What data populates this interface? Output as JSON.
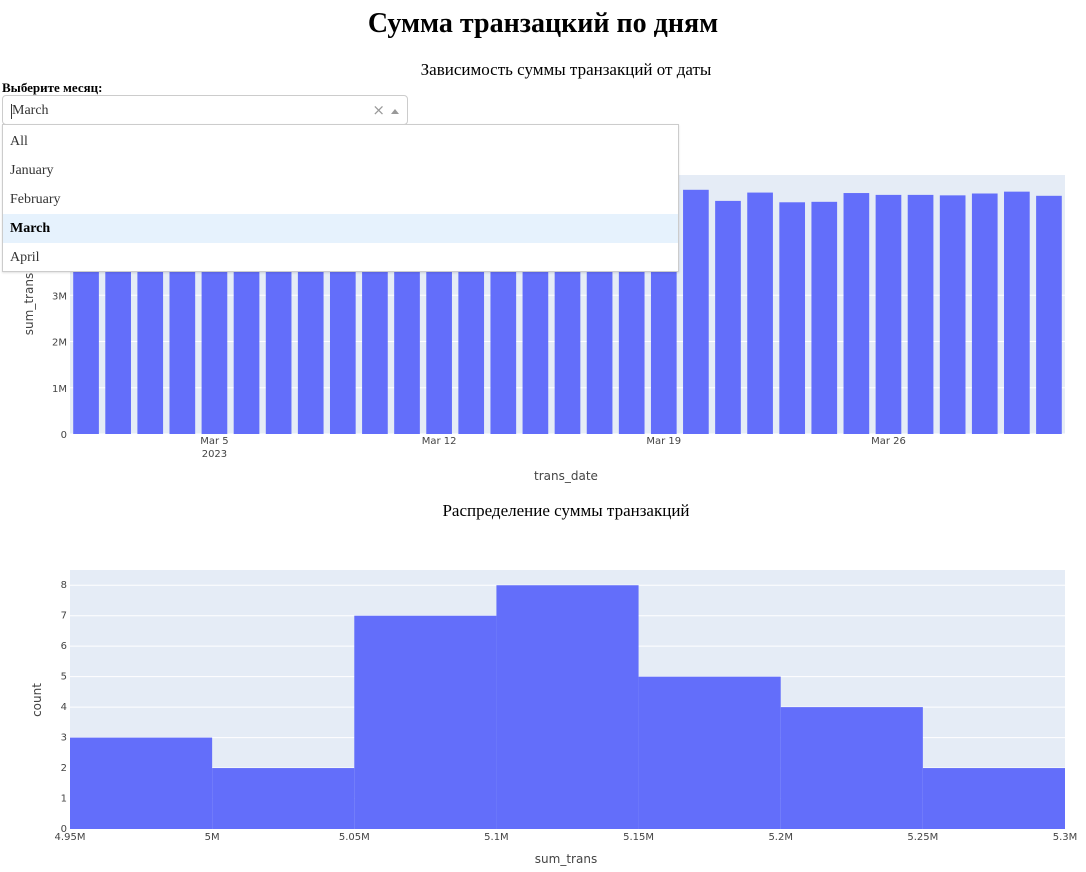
{
  "page": {
    "title": "Сумма транзацкий по дням"
  },
  "filter": {
    "label": "Выберите месяц:",
    "selected": "March",
    "clear_symbol": "×",
    "options": [
      "All",
      "January",
      "February",
      "March",
      "April"
    ]
  },
  "colors": {
    "bar": "#636efa",
    "plot_bg": "#e5ecf6",
    "grid": "#ffffff",
    "highlight": "#e6f2fd"
  },
  "chart_data": [
    {
      "type": "bar",
      "title": "Зависимость суммы транзакций от даты",
      "xlabel": "trans_date",
      "ylabel": "sum_trans",
      "x": [
        "2023-03-01",
        "2023-03-02",
        "2023-03-03",
        "2023-03-04",
        "2023-03-05",
        "2023-03-06",
        "2023-03-07",
        "2023-03-08",
        "2023-03-09",
        "2023-03-10",
        "2023-03-11",
        "2023-03-12",
        "2023-03-13",
        "2023-03-14",
        "2023-03-15",
        "2023-03-16",
        "2023-03-17",
        "2023-03-18",
        "2023-03-19",
        "2023-03-20",
        "2023-03-21",
        "2023-03-22",
        "2023-03-23",
        "2023-03-24",
        "2023-03-25",
        "2023-03-26",
        "2023-03-27",
        "2023-03-28",
        "2023-03-29",
        "2023-03-30",
        "2023-03-31"
      ],
      "values": [
        5100000,
        5100000,
        5100000,
        5100000,
        5100000,
        5100000,
        5100000,
        5100000,
        5100000,
        5100000,
        5100000,
        5100000,
        5100000,
        5100000,
        5100000,
        5100000,
        5100000,
        5100000,
        5100000,
        5280000,
        5040000,
        5220000,
        5010000,
        5020000,
        5210000,
        5170000,
        5170000,
        5160000,
        5200000,
        5240000,
        5150000
      ],
      "yticks": [
        {
          "v": 0,
          "label": "0"
        },
        {
          "v": 1000000,
          "label": "1M"
        },
        {
          "v": 2000000,
          "label": "2M"
        },
        {
          "v": 3000000,
          "label": "3M"
        }
      ],
      "xticks": [
        {
          "date": "2023-03-05",
          "label": "Mar 5",
          "sub": "2023"
        },
        {
          "date": "2023-03-12",
          "label": "Mar 12",
          "sub": ""
        },
        {
          "date": "2023-03-19",
          "label": "Mar 19",
          "sub": ""
        },
        {
          "date": "2023-03-26",
          "label": "Mar 26",
          "sub": ""
        }
      ],
      "ylim": [
        0,
        5600000
      ],
      "grid": true
    },
    {
      "type": "bar",
      "title": "Распределение суммы транзакций",
      "xlabel": "sum_trans",
      "ylabel": "count",
      "bins": [
        {
          "start": 4950000,
          "end": 5000000,
          "count": 3
        },
        {
          "start": 5000000,
          "end": 5050000,
          "count": 2
        },
        {
          "start": 5050000,
          "end": 5100000,
          "count": 7
        },
        {
          "start": 5100000,
          "end": 5150000,
          "count": 8
        },
        {
          "start": 5150000,
          "end": 5200000,
          "count": 5
        },
        {
          "start": 5200000,
          "end": 5250000,
          "count": 4
        },
        {
          "start": 5250000,
          "end": 5300000,
          "count": 2
        }
      ],
      "xticks": [
        {
          "v": 4950000,
          "label": "4.95M"
        },
        {
          "v": 5000000,
          "label": "5M"
        },
        {
          "v": 5050000,
          "label": "5.05M"
        },
        {
          "v": 5100000,
          "label": "5.1M"
        },
        {
          "v": 5150000,
          "label": "5.15M"
        },
        {
          "v": 5200000,
          "label": "5.2M"
        },
        {
          "v": 5250000,
          "label": "5.25M"
        },
        {
          "v": 5300000,
          "label": "5.3M"
        }
      ],
      "yticks": [
        0,
        1,
        2,
        3,
        4,
        5,
        6,
        7,
        8
      ],
      "xlim": [
        4950000,
        5300000
      ],
      "ylim": [
        0,
        8.5
      ],
      "grid": true
    }
  ]
}
